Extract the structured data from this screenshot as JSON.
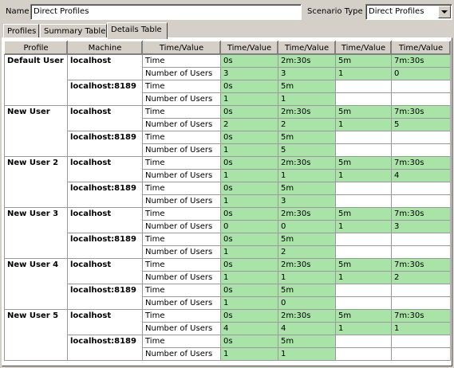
{
  "name_label": "Name",
  "name_value": "Direct Profiles",
  "scenario_label": "Scenario Type",
  "scenario_value": "Direct Profiles",
  "tabs": [
    "Profiles",
    "Summary Table",
    "Details Table"
  ],
  "active_tab": 2,
  "headers": [
    "Profile",
    "Machine",
    "Time/Value",
    "Time/Value",
    "Time/Value",
    "Time/Value",
    "Time/Value"
  ],
  "time_label": "Time",
  "users_label": "Number of Users",
  "profiles": [
    {
      "name": "Default User",
      "machines": [
        {
          "machine": "localhost",
          "times": [
            "0s",
            "2m:30s",
            "5m",
            "7m:30s"
          ],
          "users": [
            "3",
            "3",
            "1",
            "0"
          ]
        },
        {
          "machine": "localhost:8189",
          "times": [
            "0s",
            "5m"
          ],
          "users": [
            "1",
            "1"
          ]
        }
      ]
    },
    {
      "name": "New User",
      "machines": [
        {
          "machine": "localhost",
          "times": [
            "0s",
            "2m:30s",
            "5m",
            "7m:30s"
          ],
          "users": [
            "2",
            "2",
            "1",
            "5"
          ]
        },
        {
          "machine": "localhost:8189",
          "times": [
            "0s",
            "5m"
          ],
          "users": [
            "1",
            "5"
          ]
        }
      ]
    },
    {
      "name": "New User 2",
      "machines": [
        {
          "machine": "localhost",
          "times": [
            "0s",
            "2m:30s",
            "5m",
            "7m:30s"
          ],
          "users": [
            "1",
            "1",
            "1",
            "4"
          ]
        },
        {
          "machine": "localhost:8189",
          "times": [
            "0s",
            "5m"
          ],
          "users": [
            "1",
            "3"
          ]
        }
      ]
    },
    {
      "name": "New User 3",
      "machines": [
        {
          "machine": "localhost",
          "times": [
            "0s",
            "2m:30s",
            "5m",
            "7m:30s"
          ],
          "users": [
            "0",
            "0",
            "1",
            "3"
          ]
        },
        {
          "machine": "localhost:8189",
          "times": [
            "0s",
            "5m"
          ],
          "users": [
            "1",
            "2"
          ]
        }
      ]
    },
    {
      "name": "New User 4",
      "machines": [
        {
          "machine": "localhost",
          "times": [
            "0s",
            "2m:30s",
            "5m",
            "7m:30s"
          ],
          "users": [
            "1",
            "1",
            "1",
            "2"
          ]
        },
        {
          "machine": "localhost:8189",
          "times": [
            "0s",
            "5m"
          ],
          "users": [
            "1",
            "0"
          ]
        }
      ]
    },
    {
      "name": "New User 5",
      "machines": [
        {
          "machine": "localhost",
          "times": [
            "0s",
            "2m:30s",
            "5m",
            "7m:30s"
          ],
          "users": [
            "4",
            "4",
            "1",
            "1"
          ]
        },
        {
          "machine": "localhost:8189",
          "times": [
            "0s",
            "5m"
          ],
          "users": [
            "1",
            "1"
          ]
        }
      ]
    }
  ],
  "colors": {
    "cell_green": "#a9e3a8",
    "window_bg": "#d4d0c8"
  }
}
